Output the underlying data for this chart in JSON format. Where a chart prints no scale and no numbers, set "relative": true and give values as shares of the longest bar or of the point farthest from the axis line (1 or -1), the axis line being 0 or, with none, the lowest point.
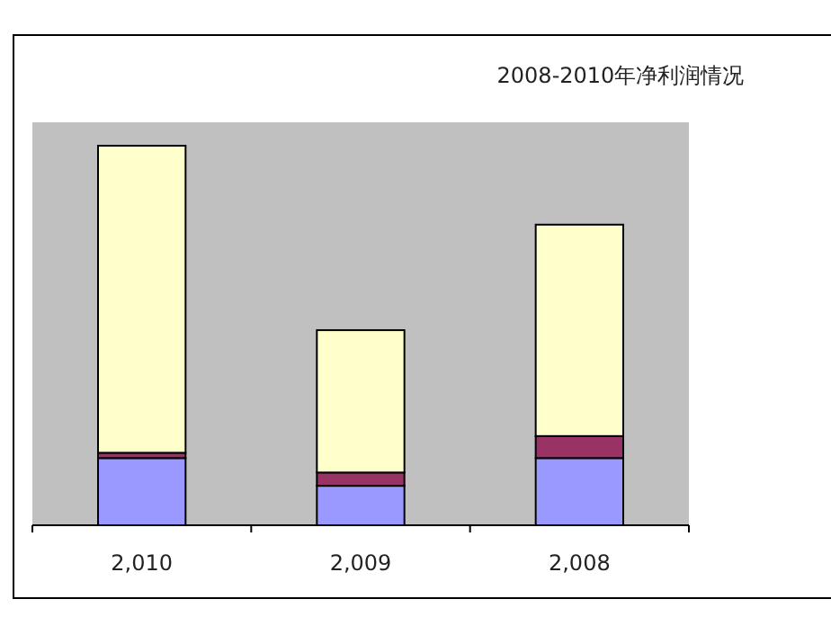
{
  "chart_data": {
    "type": "bar",
    "title": "2008-2010年净利润情况",
    "categories": [
      "2,010",
      "2,009",
      "2,008"
    ],
    "stacked": true,
    "relative": true,
    "series": [
      {
        "color": "#9999ff",
        "values": [
          0.177,
          0.104,
          0.177
        ]
      },
      {
        "color": "#993366",
        "values": [
          0.014,
          0.035,
          0.058
        ]
      },
      {
        "color": "#ffffcc",
        "values": [
          0.809,
          0.375,
          0.557
        ]
      }
    ]
  }
}
